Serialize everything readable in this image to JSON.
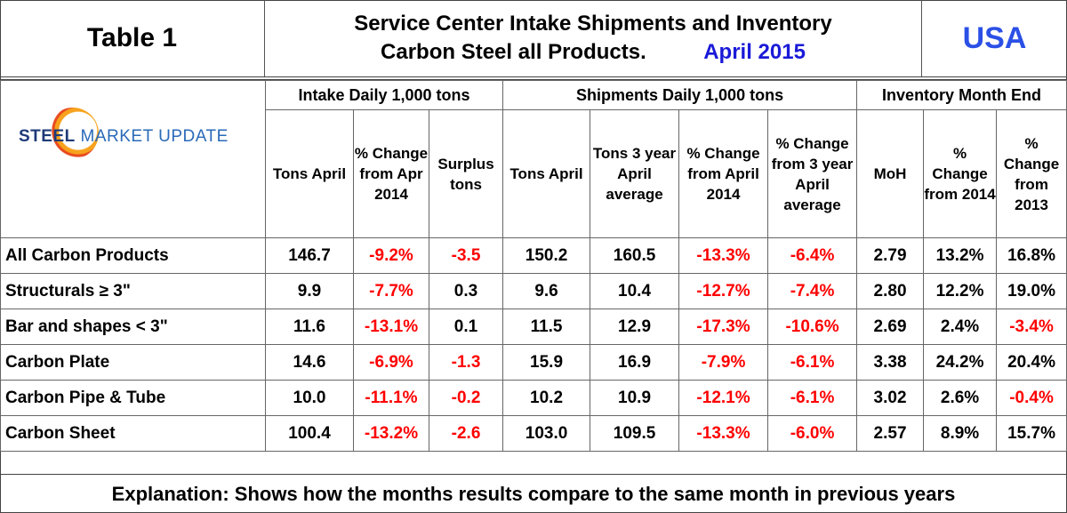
{
  "header": {
    "table_label": "Table 1",
    "title_line1": "Service Center Intake Shipments and Inventory",
    "title_line2": "Carbon Steel all Products.",
    "period": "April 2015",
    "region": "USA"
  },
  "logo": {
    "word1": "STEEL",
    "word2": " MARKET UPDATE"
  },
  "groups": {
    "intake": "Intake Daily 1,000 tons",
    "shipments": "Shipments Daily 1,000 tons",
    "inventory": "Inventory Month End"
  },
  "columns": [
    "Tons April",
    "% Change from Apr 2014",
    "Surplus tons",
    "Tons April",
    "Tons 3 year April average",
    "% Change from April 2014",
    "% Change from 3 year April average",
    "MoH",
    "% Change from 2014",
    "% Change from 2013"
  ],
  "rows": [
    {
      "label": "All Carbon Products",
      "values": [
        "146.7",
        "-9.2%",
        "-3.5",
        "150.2",
        "160.5",
        "-13.3%",
        "-6.4%",
        "2.79",
        "13.2%",
        "16.8%"
      ]
    },
    {
      "label": "Structurals ≥ 3\"",
      "values": [
        "9.9",
        "-7.7%",
        "0.3",
        "9.6",
        "10.4",
        "-12.7%",
        "-7.4%",
        "2.80",
        "12.2%",
        "19.0%"
      ]
    },
    {
      "label": "Bar and shapes < 3\"",
      "values": [
        "11.6",
        "-13.1%",
        "0.1",
        "11.5",
        "12.9",
        "-17.3%",
        "-10.6%",
        "2.69",
        "2.4%",
        "-3.4%"
      ]
    },
    {
      "label": "Carbon Plate",
      "values": [
        "14.6",
        "-6.9%",
        "-1.3",
        "15.9",
        "16.9",
        "-7.9%",
        "-6.1%",
        "3.38",
        "24.2%",
        "20.4%"
      ]
    },
    {
      "label": "Carbon Pipe & Tube",
      "values": [
        "10.0",
        "-11.1%",
        "-0.2",
        "10.2",
        "10.9",
        "-12.1%",
        "-6.1%",
        "3.02",
        "2.6%",
        "-0.4%"
      ]
    },
    {
      "label": "Carbon Sheet",
      "values": [
        "100.4",
        "-13.2%",
        "-2.6",
        "103.0",
        "109.5",
        "-13.3%",
        "-6.0%",
        "2.57",
        "8.9%",
        "15.7%"
      ]
    }
  ],
  "footer": "Explanation: Shows how the months results compare to the same month in previous years",
  "colors": {
    "negative": "#ff0000",
    "region": "#2b50e6",
    "period": "#1a1ad8"
  }
}
